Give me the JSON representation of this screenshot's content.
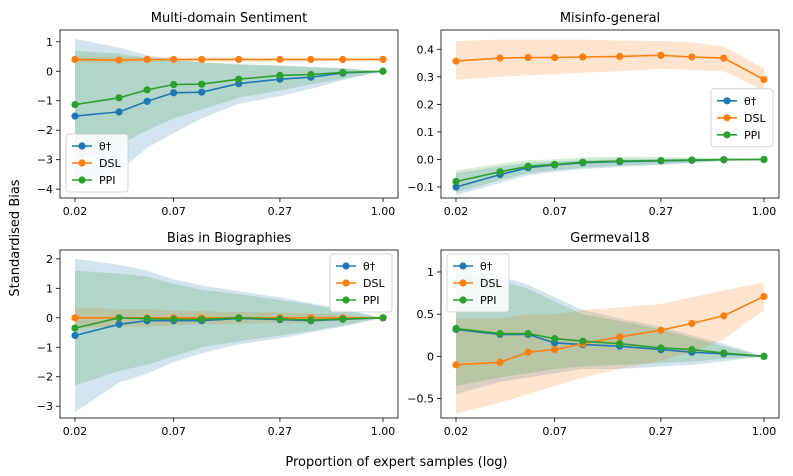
{
  "figure": {
    "xlabel": "Proportion of expert samples (log)",
    "ylabel": "Standardised Bias"
  },
  "chart_data": [
    {
      "type": "line",
      "title": "Multi-domain Sentiment",
      "xlabel": "",
      "ylabel": "",
      "x": [
        0.02,
        0.035,
        0.05,
        0.07,
        0.1,
        0.16,
        0.27,
        0.4,
        0.6,
        1.0
      ],
      "x_ticks": [
        "0.02",
        "0.07",
        "0.27",
        "1.00"
      ],
      "ylim": [
        -4.3,
        1.4
      ],
      "y_ticks": [
        1,
        0,
        -1,
        -2,
        -3,
        -4
      ],
      "legend": "lower-left",
      "series": [
        {
          "name": "θ†",
          "color": "#1f77b4",
          "values": [
            -1.52,
            -1.38,
            -1.02,
            -0.73,
            -0.71,
            -0.42,
            -0.27,
            -0.2,
            -0.06,
            0.0
          ],
          "lower": [
            -3.9,
            -3.4,
            -2.6,
            -2.1,
            -1.6,
            -1.1,
            -0.85,
            -0.6,
            -0.3,
            0.0
          ],
          "upper": [
            1.1,
            0.8,
            0.55,
            0.4,
            0.3,
            0.25,
            0.2,
            0.15,
            0.1,
            0.0
          ]
        },
        {
          "name": "DSL",
          "color": "#ff7f0e",
          "values": [
            0.4,
            0.38,
            0.4,
            0.4,
            0.4,
            0.4,
            0.4,
            0.4,
            0.4,
            0.4
          ],
          "lower": [
            0.3,
            0.3,
            0.32,
            0.32,
            0.33,
            0.33,
            0.34,
            0.34,
            0.35,
            0.36
          ],
          "upper": [
            0.5,
            0.48,
            0.48,
            0.48,
            0.47,
            0.47,
            0.46,
            0.46,
            0.45,
            0.44
          ]
        },
        {
          "name": "PPI",
          "color": "#2ca02c",
          "values": [
            -1.13,
            -0.9,
            -0.63,
            -0.45,
            -0.44,
            -0.27,
            -0.14,
            -0.11,
            -0.04,
            0.0
          ],
          "lower": [
            -3.0,
            -2.5,
            -2.0,
            -1.6,
            -1.3,
            -0.9,
            -0.65,
            -0.45,
            -0.25,
            0.0
          ],
          "upper": [
            0.7,
            0.6,
            0.45,
            0.35,
            0.3,
            0.22,
            0.18,
            0.14,
            0.1,
            0.0
          ]
        }
      ]
    },
    {
      "type": "line",
      "title": "Misinfo-general",
      "xlabel": "",
      "ylabel": "",
      "x": [
        0.02,
        0.035,
        0.05,
        0.07,
        0.1,
        0.16,
        0.27,
        0.4,
        0.6,
        1.0
      ],
      "x_ticks": [
        "0.02",
        "0.07",
        "0.27",
        "1.00"
      ],
      "ylim": [
        -0.14,
        0.47
      ],
      "y_ticks": [
        0.4,
        0.3,
        0.2,
        0.1,
        0.0,
        -0.1
      ],
      "legend": "center-right",
      "series": [
        {
          "name": "θ†",
          "color": "#1f77b4",
          "values": [
            -0.1,
            -0.055,
            -0.03,
            -0.02,
            -0.012,
            -0.008,
            -0.005,
            -0.003,
            -0.001,
            0.0
          ],
          "lower": [
            -0.13,
            -0.085,
            -0.058,
            -0.045,
            -0.035,
            -0.027,
            -0.02,
            -0.013,
            -0.006,
            0.0
          ],
          "upper": [
            -0.05,
            -0.025,
            -0.012,
            -0.008,
            -0.002,
            0.0,
            0.002,
            0.003,
            0.003,
            0.0
          ]
        },
        {
          "name": "DSL",
          "color": "#ff7f0e",
          "values": [
            0.357,
            0.368,
            0.37,
            0.37,
            0.372,
            0.374,
            0.378,
            0.372,
            0.368,
            0.29
          ],
          "lower": [
            0.29,
            0.3,
            0.305,
            0.31,
            0.315,
            0.32,
            0.33,
            0.325,
            0.32,
            0.25
          ],
          "upper": [
            0.43,
            0.435,
            0.435,
            0.435,
            0.435,
            0.432,
            0.43,
            0.425,
            0.41,
            0.33
          ]
        },
        {
          "name": "PPI",
          "color": "#2ca02c",
          "values": [
            -0.08,
            -0.045,
            -0.025,
            -0.018,
            -0.01,
            -0.006,
            -0.004,
            -0.002,
            -0.001,
            0.0
          ],
          "lower": [
            -0.12,
            -0.075,
            -0.05,
            -0.04,
            -0.03,
            -0.023,
            -0.017,
            -0.011,
            -0.005,
            0.0
          ],
          "upper": [
            -0.04,
            -0.015,
            -0.003,
            0.0,
            0.008,
            0.01,
            0.009,
            0.007,
            0.004,
            0.0
          ]
        }
      ]
    },
    {
      "type": "line",
      "title": "Bias in Biographies",
      "xlabel": "",
      "ylabel": "",
      "x": [
        0.02,
        0.035,
        0.05,
        0.07,
        0.1,
        0.16,
        0.27,
        0.4,
        0.6,
        1.0
      ],
      "x_ticks": [
        "0.02",
        "0.07",
        "0.27",
        "1.00"
      ],
      "ylim": [
        -3.4,
        2.3
      ],
      "y_ticks": [
        2,
        1,
        0,
        -1,
        -2,
        -3
      ],
      "legend": "top-right",
      "series": [
        {
          "name": "θ†",
          "color": "#1f77b4",
          "values": [
            -0.6,
            -0.22,
            -0.1,
            -0.1,
            -0.1,
            -0.02,
            -0.06,
            -0.1,
            -0.05,
            0.0
          ],
          "lower": [
            -3.2,
            -2.2,
            -1.9,
            -1.5,
            -1.2,
            -0.9,
            -0.7,
            -0.5,
            -0.3,
            0.0
          ],
          "upper": [
            2.0,
            1.8,
            1.6,
            1.3,
            1.1,
            0.9,
            0.7,
            0.5,
            0.3,
            0.0
          ]
        },
        {
          "name": "DSL",
          "color": "#ff7f0e",
          "values": [
            0.0,
            0.0,
            0.0,
            0.0,
            0.0,
            0.0,
            0.0,
            0.0,
            0.0,
            0.0
          ],
          "lower": [
            -0.35,
            -0.3,
            -0.3,
            -0.25,
            -0.22,
            -0.2,
            -0.18,
            -0.15,
            -0.1,
            0.0
          ],
          "upper": [
            0.35,
            0.3,
            0.3,
            0.25,
            0.22,
            0.2,
            0.18,
            0.15,
            0.1,
            0.0
          ]
        },
        {
          "name": "PPI",
          "color": "#2ca02c",
          "values": [
            -0.35,
            0.0,
            -0.03,
            -0.05,
            -0.05,
            0.0,
            -0.04,
            -0.08,
            -0.04,
            0.0
          ],
          "lower": [
            -2.3,
            -1.8,
            -1.6,
            -1.3,
            -1.0,
            -0.8,
            -0.6,
            -0.45,
            -0.25,
            0.0
          ],
          "upper": [
            1.6,
            1.5,
            1.4,
            1.15,
            0.95,
            0.8,
            0.6,
            0.45,
            0.25,
            0.0
          ]
        }
      ]
    },
    {
      "type": "line",
      "title": "Germeval18",
      "xlabel": "",
      "ylabel": "",
      "x": [
        0.02,
        0.035,
        0.05,
        0.07,
        0.1,
        0.16,
        0.27,
        0.4,
        0.6,
        1.0
      ],
      "x_ticks": [
        "0.02",
        "0.07",
        "0.27",
        "1.00"
      ],
      "ylim": [
        -0.73,
        1.26
      ],
      "y_ticks": [
        1.0,
        0.5,
        0.0,
        -0.5
      ],
      "legend": "top-left",
      "series": [
        {
          "name": "θ†",
          "color": "#1f77b4",
          "values": [
            0.32,
            0.26,
            0.26,
            0.16,
            0.14,
            0.12,
            0.08,
            0.05,
            0.03,
            0.0
          ],
          "lower": [
            -0.45,
            -0.3,
            -0.25,
            -0.2,
            -0.15,
            -0.15,
            -0.12,
            -0.1,
            -0.06,
            0.0
          ],
          "upper": [
            1.1,
            0.95,
            0.85,
            0.7,
            0.55,
            0.45,
            0.35,
            0.25,
            0.15,
            0.0
          ]
        },
        {
          "name": "DSL",
          "color": "#ff7f0e",
          "values": [
            -0.1,
            -0.07,
            0.05,
            0.08,
            0.15,
            0.23,
            0.31,
            0.39,
            0.48,
            0.71
          ],
          "lower": [
            -0.68,
            -0.55,
            -0.45,
            -0.35,
            -0.25,
            -0.15,
            -0.05,
            0.05,
            0.2,
            0.55
          ],
          "upper": [
            0.45,
            0.45,
            0.5,
            0.5,
            0.55,
            0.58,
            0.62,
            0.7,
            0.78,
            0.88
          ]
        },
        {
          "name": "PPI",
          "color": "#2ca02c",
          "values": [
            0.33,
            0.27,
            0.27,
            0.21,
            0.18,
            0.15,
            0.1,
            0.08,
            0.04,
            0.0
          ],
          "lower": [
            -0.35,
            -0.25,
            -0.2,
            -0.15,
            -0.12,
            -0.1,
            -0.08,
            -0.06,
            -0.03,
            0.0
          ],
          "upper": [
            1.0,
            0.9,
            0.8,
            0.65,
            0.5,
            0.42,
            0.32,
            0.22,
            0.12,
            0.0
          ]
        }
      ]
    }
  ]
}
